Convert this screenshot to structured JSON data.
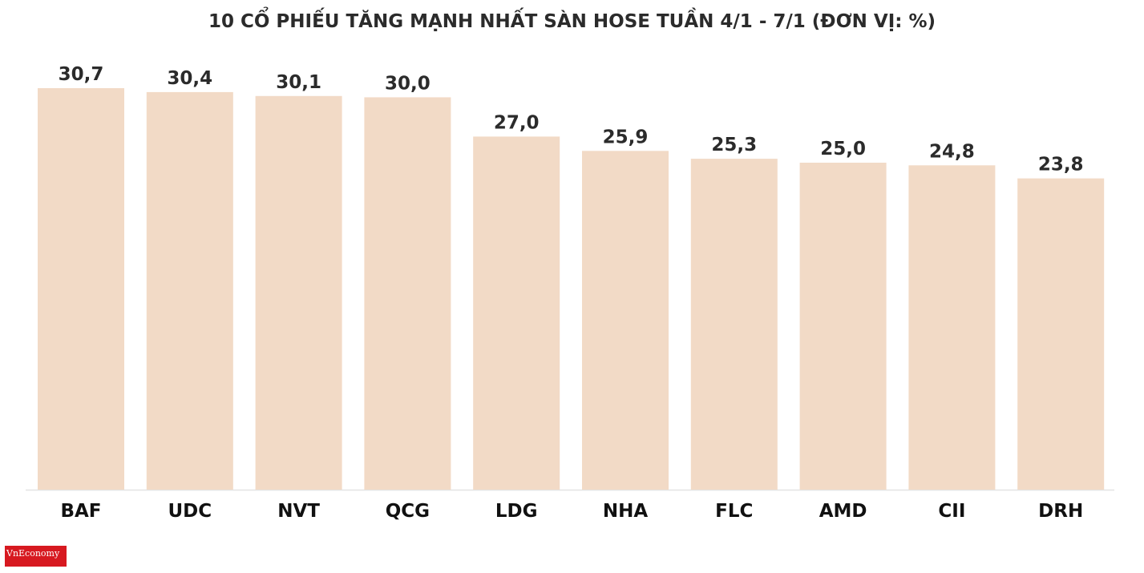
{
  "chart_data": {
    "type": "bar",
    "title": "10 CỔ PHIẾU TĂNG MẠNH NHẤT SÀN HOSE TUẦN 4/1 - 7/1 (ĐƠN VỊ: %)",
    "xlabel": "",
    "ylabel": "",
    "categories": [
      "BAF",
      "UDC",
      "NVT",
      "QCG",
      "LDG",
      "NHA",
      "FLC",
      "AMD",
      "CII",
      "DRH"
    ],
    "values": [
      30.7,
      30.4,
      30.1,
      30.0,
      27.0,
      25.9,
      25.3,
      25.0,
      24.8,
      23.8
    ],
    "value_labels": [
      "30,7",
      "30,4",
      "30,1",
      "30,0",
      "27,0",
      "25,9",
      "25,3",
      "25,0",
      "24,8",
      "23,8"
    ],
    "ylim": [
      0,
      30.7
    ],
    "grid": false,
    "legend": "none",
    "colors": {
      "bar": "#f2dac6",
      "baseline": "#e3e3e3",
      "text": "#2b2b2b"
    }
  },
  "logo": {
    "text": "VnEconomy",
    "color": "#d71920"
  }
}
